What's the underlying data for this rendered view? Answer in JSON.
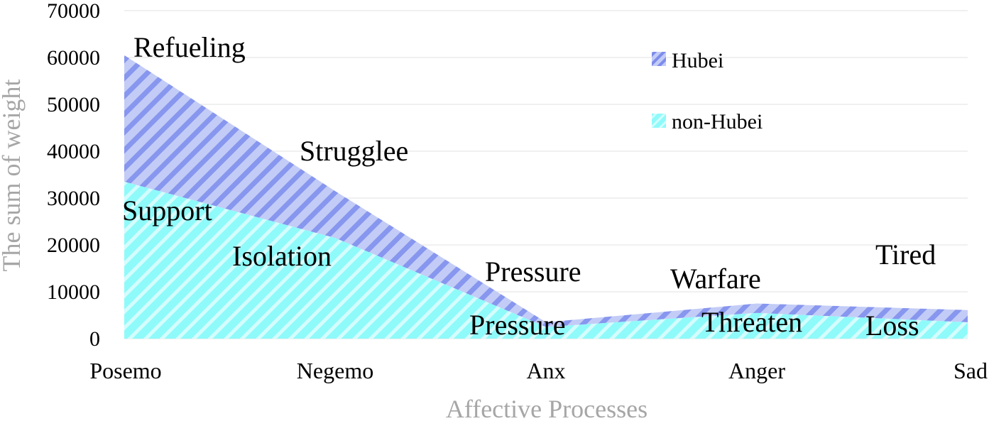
{
  "chart_data": {
    "type": "area",
    "stacked": true,
    "categories": [
      "Posemo",
      "Negemo",
      "Anx",
      "Anger",
      "Sad"
    ],
    "series": [
      {
        "name": "non-Hubei",
        "values": [
          33500,
          21500,
          2500,
          5500,
          3500
        ],
        "color": "#66ffff"
      },
      {
        "name": "Hubei",
        "values": [
          27000,
          10000,
          1000,
          2000,
          2600
        ],
        "color": "#8da0f0"
      }
    ],
    "xlabel": "Affective Processes",
    "ylabel": "The sum of weight",
    "ylim": [
      0,
      70000
    ],
    "yticks": [
      0,
      10000,
      20000,
      30000,
      40000,
      50000,
      60000,
      70000
    ],
    "grid": true,
    "legend": {
      "position": "top-right",
      "entries": [
        "Hubei",
        "non-Hubei"
      ]
    },
    "annotations": [
      {
        "text": "Refueling",
        "series": "Hubei",
        "category": "Posemo"
      },
      {
        "text": "Support",
        "series": "non-Hubei",
        "category": "Posemo"
      },
      {
        "text": "Strugglee",
        "series": "Hubei",
        "category": "Negemo"
      },
      {
        "text": "Isolation",
        "series": "non-Hubei",
        "category": "Negemo"
      },
      {
        "text": "Pressure",
        "series": "Hubei",
        "category": "Anx"
      },
      {
        "text": "Pressure",
        "series": "non-Hubei",
        "category": "Anx"
      },
      {
        "text": "Warfare",
        "series": "Hubei",
        "category": "Anger"
      },
      {
        "text": "Threaten",
        "series": "non-Hubei",
        "category": "Anger"
      },
      {
        "text": "Tired",
        "series": "Hubei",
        "category": "Sad"
      },
      {
        "text": "Loss",
        "series": "non-Hubei",
        "category": "Sad"
      }
    ]
  }
}
